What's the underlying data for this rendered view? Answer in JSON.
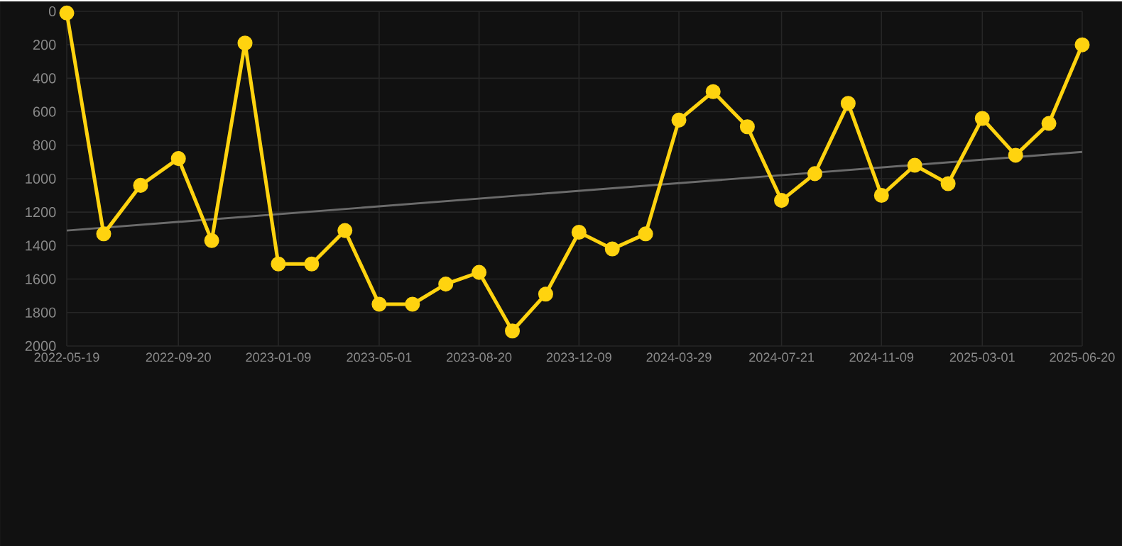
{
  "chart_data": {
    "type": "line",
    "x": [
      "2022-05-19",
      "2022-06-29",
      "2022-08-09",
      "2022-09-20",
      "2022-10-27",
      "2022-12-03",
      "2023-01-09",
      "2023-02-15",
      "2023-03-24",
      "2023-05-01",
      "2023-06-07",
      "2023-07-14",
      "2023-08-20",
      "2023-09-26",
      "2023-11-02",
      "2023-12-09",
      "2024-01-15",
      "2024-02-21",
      "2024-03-29",
      "2024-05-06",
      "2024-06-13",
      "2024-07-21",
      "2024-08-27",
      "2024-10-03",
      "2024-11-09",
      "2024-12-16",
      "2025-01-22",
      "2025-03-01",
      "2025-04-07",
      "2025-05-14",
      "2025-06-20"
    ],
    "series": [
      {
        "color": "#ffd30f",
        "marker": "circle",
        "values": [
          10,
          1330,
          1040,
          880,
          1370,
          190,
          1510,
          1510,
          1310,
          1750,
          1750,
          1630,
          1560,
          1910,
          1690,
          1320,
          1420,
          1330,
          650,
          480,
          690,
          1130,
          970,
          550,
          1100,
          920,
          1030,
          640,
          860,
          670,
          200
        ]
      },
      {
        "type": "line",
        "color": "#6b6b6b",
        "marker": "none",
        "x": [
          "2022-05-19",
          "2025-06-20"
        ],
        "values": [
          1310,
          840
        ]
      }
    ],
    "xlim": [
      "2022-05-19",
      "2025-06-20"
    ],
    "xticks": [
      "2022-05-19",
      "2022-09-20",
      "2023-01-09",
      "2023-05-01",
      "2023-08-20",
      "2023-12-09",
      "2024-03-29",
      "2024-07-21",
      "2024-11-09",
      "2025-03-01",
      "2025-06-20"
    ],
    "ylim": [
      2000,
      0
    ],
    "yticks": [
      0,
      200,
      400,
      600,
      800,
      1000,
      1200,
      1400,
      1600,
      1800,
      2000
    ],
    "grid": true,
    "line_style": "solid"
  }
}
